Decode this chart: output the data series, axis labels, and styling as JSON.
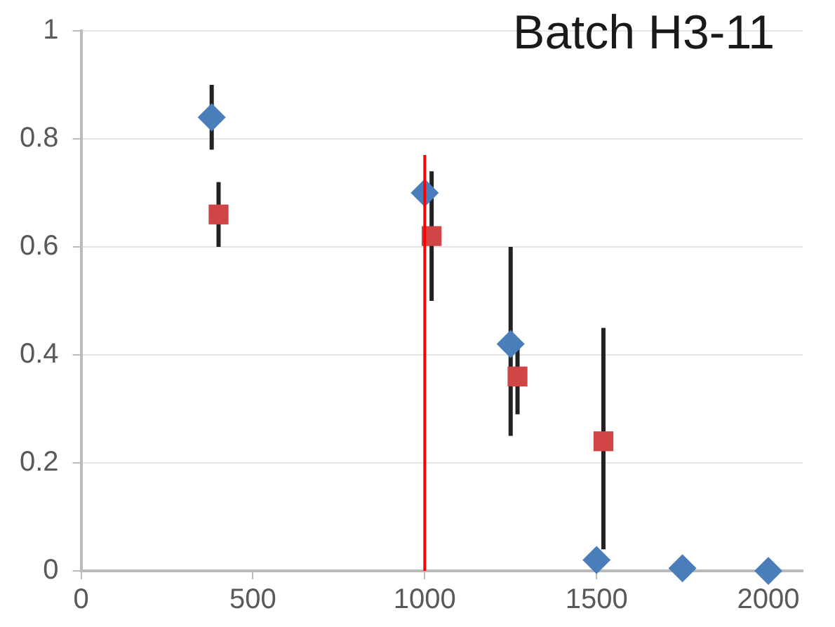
{
  "chart_data": {
    "type": "scatter",
    "title": "Batch H3-11",
    "xlim": [
      0,
      2100
    ],
    "xticks": [
      0,
      500,
      1000,
      1500,
      2000
    ],
    "ylim": [
      0,
      1
    ],
    "yticks": [
      0,
      0.2,
      0.4,
      0.6,
      0.8,
      1
    ],
    "grid": "y",
    "legend": false,
    "series": [
      {
        "color": "#4a7ebb",
        "marker": "diamond",
        "x": [
          380,
          1000,
          1250,
          1500,
          1750,
          2000
        ],
        "values": [
          0.84,
          0.7,
          0.42,
          0.02,
          0.005,
          0
        ],
        "errors": [
          0.06,
          null,
          [
            0.25,
            0.6
          ],
          null,
          null,
          null
        ]
      },
      {
        "color": "#d04545",
        "marker": "square",
        "x": [
          400,
          1020,
          1270,
          1520
        ],
        "values": [
          0.66,
          0.62,
          0.36,
          0.24
        ],
        "errors": [
          0.06,
          [
            0.5,
            0.74
          ],
          0.07,
          [
            0.04,
            0.45
          ]
        ]
      },
      {
        "type": "line",
        "color": "#ff0000",
        "marker": "none",
        "x": [
          1000,
          1000
        ],
        "values": [
          0,
          0.77
        ]
      }
    ]
  }
}
